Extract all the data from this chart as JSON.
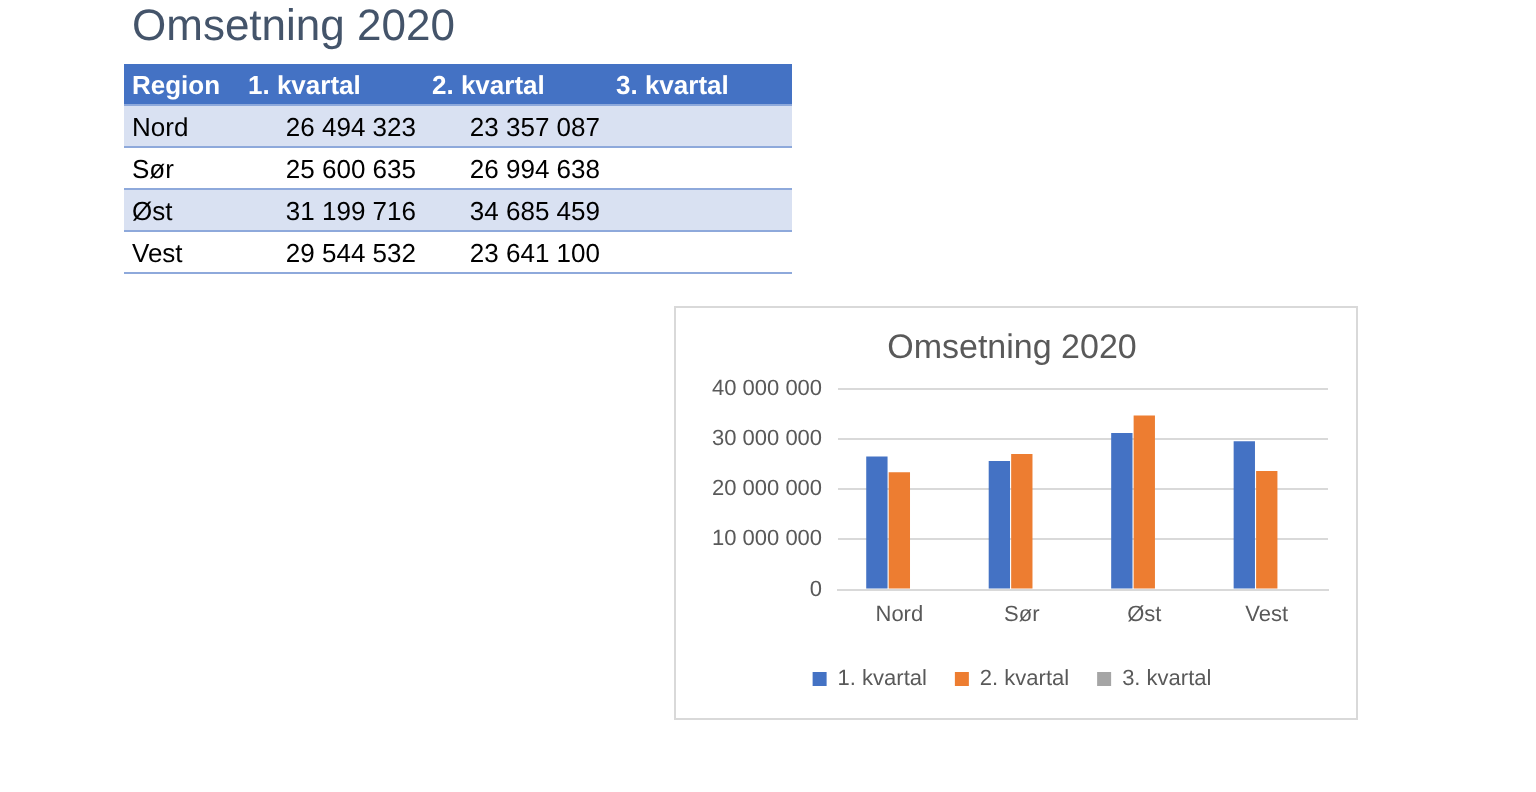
{
  "chart_data": [
    {
      "type": "other",
      "title": "Omsetning 2020",
      "xlabel": "Region",
      "categories": [
        "Nord",
        "Sør",
        "Øst",
        "Vest"
      ],
      "series": [
        {
          "name": "1. kvartal",
          "values": [
            26494323,
            25600635,
            31199716,
            29544532
          ],
          "value_labels": [
            "26 494 323",
            "25 600 635",
            "31 199 716",
            "29 544 532"
          ]
        },
        {
          "name": "2. kvartal",
          "values": [
            23357087,
            26994638,
            34685459,
            23641100
          ],
          "value_labels": [
            "23 357 087",
            "26 994 638",
            "34 685 459",
            "23 641 100"
          ]
        },
        {
          "name": "3. kvartal",
          "values": [
            null,
            null,
            null,
            null
          ],
          "value_labels": [
            null,
            null,
            null,
            null
          ]
        }
      ]
    },
    {
      "type": "bar",
      "title": "Omsetning 2020",
      "categories": [
        "Nord",
        "Sør",
        "Øst",
        "Vest"
      ],
      "series": [
        {
          "name": "1. kvartal",
          "color": "#4472c4",
          "values": [
            26494323,
            25600635,
            31199716,
            29544532
          ]
        },
        {
          "name": "2. kvartal",
          "color": "#ed7d31",
          "values": [
            23357087,
            26994638,
            34685459,
            23641100
          ]
        },
        {
          "name": "3. kvartal",
          "color": "#a5a5a5",
          "values": [
            null,
            null,
            null,
            null
          ]
        }
      ],
      "ylim": [
        0,
        40000000
      ],
      "yticks": [
        {
          "value": 0,
          "label": "0"
        },
        {
          "value": 10000000,
          "label": "10 000 000"
        },
        {
          "value": 20000000,
          "label": "20 000 000"
        },
        {
          "value": 30000000,
          "label": "30 000 000"
        },
        {
          "value": 40000000,
          "label": "40 000 000"
        }
      ],
      "grid": "y",
      "legend": "bottom"
    }
  ]
}
